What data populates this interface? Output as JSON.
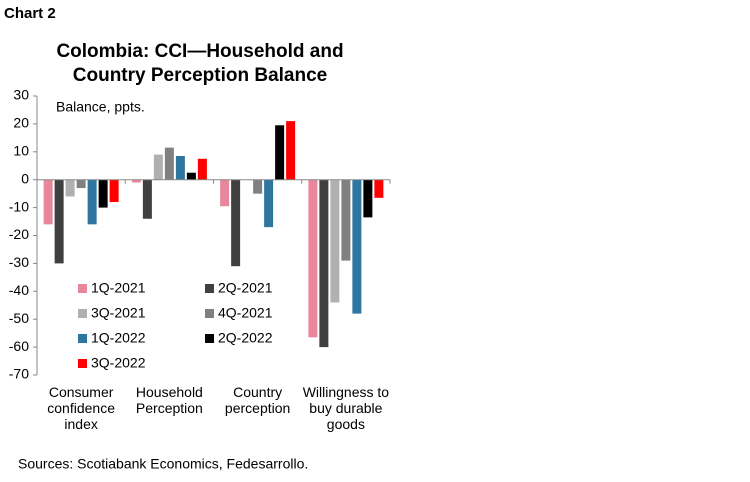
{
  "chart_data": {
    "type": "bar",
    "label": "Chart 2",
    "title": "Colombia: CCI—Household and Country Perception Balance",
    "annotation": "Balance, ppts.",
    "source": "Sources: Scotiabank Economics, Fedesarrollo.",
    "categories": [
      "Consumer confidence index",
      "Household Perception",
      "Country perception",
      "Willingness to buy durable goods"
    ],
    "series": [
      {
        "name": "1Q-2021",
        "color": "#e8879b",
        "values": [
          -16,
          -1,
          -9.5,
          -56.5
        ]
      },
      {
        "name": "2Q-2021",
        "color": "#404040",
        "values": [
          -30,
          -14,
          -31,
          -60
        ]
      },
      {
        "name": "3Q-2021",
        "color": "#b0b0b0",
        "values": [
          -6,
          9,
          0,
          -44
        ]
      },
      {
        "name": "4Q-2021",
        "color": "#808080",
        "values": [
          -3,
          11.5,
          -5,
          -29
        ]
      },
      {
        "name": "1Q-2022",
        "color": "#2e75a0",
        "values": [
          -16,
          8.5,
          -17,
          -48
        ]
      },
      {
        "name": "2Q-2022",
        "color": "#000000",
        "values": [
          -10,
          2.5,
          19.5,
          -13.5
        ]
      },
      {
        "name": "3Q-2022",
        "color": "#ff0000",
        "values": [
          -8,
          7.5,
          21,
          -6.5
        ]
      }
    ],
    "ylim": [
      -70,
      30
    ],
    "yticks": [
      -70,
      -60,
      -50,
      -40,
      -30,
      -20,
      -10,
      0,
      10,
      20,
      30
    ],
    "grid": false,
    "legend": "lower left"
  }
}
